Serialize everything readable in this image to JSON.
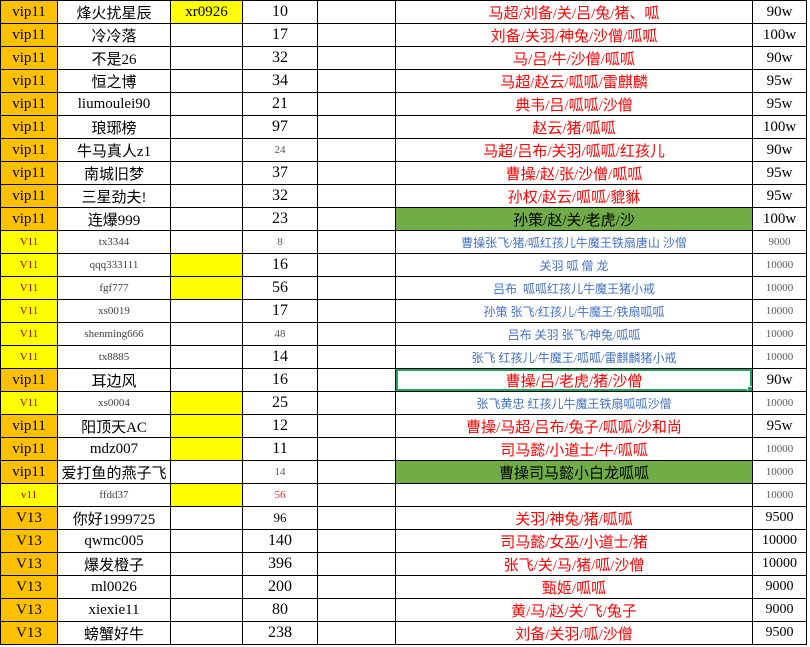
{
  "app": {
    "type": "spreadsheet-grid"
  },
  "colors": {
    "vip_orange_bg": "#FFC000",
    "vip_yellow_bg": "#FFFF00",
    "green_fill": "#70AD47",
    "red_text": "#FF0000",
    "blue_text": "#4472C4",
    "selection_border": "#21A366",
    "grid_border": "#000000"
  },
  "table": {
    "rows": [
      {
        "vip": "vip11",
        "vip_style": "orange",
        "name": "烽火扰星辰",
        "name_style": "normal",
        "code": "xr0926",
        "code_yellow": true,
        "num": "10",
        "num_style": "normal",
        "chars": "马超/刘备/关/吕/兔/猪、呱",
        "chars_style": "red",
        "value": "90w",
        "value_style": "w",
        "selected": false
      },
      {
        "vip": "vip11",
        "vip_style": "orange",
        "name": "冷冷落",
        "name_style": "normal",
        "code": "",
        "code_yellow": false,
        "num": "17",
        "num_style": "normal",
        "chars": "刘备/关羽/神兔/沙僧/呱呱",
        "chars_style": "red",
        "value": "100w",
        "value_style": "w",
        "selected": false
      },
      {
        "vip": "vip11",
        "vip_style": "orange",
        "name": "不是26",
        "name_style": "normal",
        "code": "",
        "code_yellow": false,
        "num": "32",
        "num_style": "normal",
        "chars": "马/吕/牛/沙僧/呱呱",
        "chars_style": "red",
        "value": "90w",
        "value_style": "w",
        "selected": false
      },
      {
        "vip": "vip11",
        "vip_style": "orange",
        "name": "恒之博",
        "name_style": "normal",
        "code": "",
        "code_yellow": false,
        "num": "34",
        "num_style": "normal",
        "chars": "马超/赵云/呱呱/雷麒麟",
        "chars_style": "red",
        "value": "95w",
        "value_style": "w",
        "selected": false
      },
      {
        "vip": "vip11",
        "vip_style": "orange",
        "name": "liumoulei90",
        "name_style": "normal",
        "code": "",
        "code_yellow": false,
        "num": "21",
        "num_style": "normal",
        "chars": "典韦/吕/呱呱/沙僧",
        "chars_style": "red",
        "value": "95w",
        "value_style": "w",
        "selected": false
      },
      {
        "vip": "vip11",
        "vip_style": "orange",
        "name": "琅琊榜",
        "name_style": "normal",
        "code": "",
        "code_yellow": false,
        "num": "97",
        "num_style": "normal",
        "chars": "赵云/猪/呱呱",
        "chars_style": "red",
        "value": "100w",
        "value_style": "w",
        "selected": false
      },
      {
        "vip": "vip11",
        "vip_style": "orange",
        "name": "牛马真人z1",
        "name_style": "normal",
        "code": "",
        "code_yellow": false,
        "num": "24",
        "num_style": "small",
        "chars": "马超/吕布/关羽/呱呱/红孩儿",
        "chars_style": "red",
        "value": "90w",
        "value_style": "w",
        "selected": false
      },
      {
        "vip": "vip11",
        "vip_style": "orange",
        "name": "南城旧梦",
        "name_style": "normal",
        "code": "",
        "code_yellow": false,
        "num": "37",
        "num_style": "normal",
        "chars": "曹操/赵/张/沙僧/呱呱",
        "chars_style": "red",
        "value": "95w",
        "value_style": "w",
        "selected": false
      },
      {
        "vip": "vip11",
        "vip_style": "orange",
        "name": "三星劲夫!",
        "name_style": "normal",
        "code": "",
        "code_yellow": false,
        "num": "32",
        "num_style": "normal",
        "chars": "孙权/赵云/呱呱/貔貅",
        "chars_style": "red",
        "value": "95w",
        "value_style": "w",
        "selected": false
      },
      {
        "vip": "vip11",
        "vip_style": "orange",
        "name": "连爆999",
        "name_style": "normal",
        "code": "",
        "code_yellow": false,
        "num": "23",
        "num_style": "normal",
        "chars": "孙策/赵/关/老虎/沙",
        "chars_style": "green",
        "value": "100w",
        "value_style": "w",
        "selected": false
      },
      {
        "vip": "V11",
        "vip_style": "yellow",
        "name": "tx3344",
        "name_style": "small",
        "code": "",
        "code_yellow": false,
        "num": "8",
        "num_style": "small",
        "chars": "曹操张飞/猪/呱红孩儿牛魔王铁扇唐山 沙僧",
        "chars_style": "blue",
        "value": "9000",
        "value_style": "small",
        "selected": false
      },
      {
        "vip": "V11",
        "vip_style": "yellow",
        "name": "qqq333111",
        "name_style": "small",
        "code": "",
        "code_yellow": true,
        "num": "16",
        "num_style": "normal",
        "chars": "关羽 呱 僧 龙",
        "chars_style": "blue",
        "value": "10000",
        "value_style": "small",
        "selected": false
      },
      {
        "vip": "V11",
        "vip_style": "yellow",
        "name": "fgf777",
        "name_style": "small",
        "code": "",
        "code_yellow": true,
        "num": "56",
        "num_style": "normal",
        "chars": "吕布  呱呱红孩儿牛魔王猪小戒",
        "chars_style": "blue",
        "value": "10000",
        "value_style": "small",
        "selected": false
      },
      {
        "vip": "V11",
        "vip_style": "yellow",
        "name": "xs0019",
        "name_style": "small",
        "code": "",
        "code_yellow": false,
        "num": "17",
        "num_style": "normal",
        "chars": "孙策 张飞/红孩儿/牛魔王/铁扇呱呱",
        "chars_style": "blue",
        "value": "10000",
        "value_style": "small",
        "selected": false
      },
      {
        "vip": "V11",
        "vip_style": "yellow",
        "name": "shenming666",
        "name_style": "small",
        "code": "",
        "code_yellow": false,
        "num": "48",
        "num_style": "small",
        "chars": "吕布 关羽 张飞/神兔/呱呱",
        "chars_style": "blue",
        "value": "10000",
        "value_style": "small",
        "selected": false
      },
      {
        "vip": "V11",
        "vip_style": "yellow",
        "name": "tx8885",
        "name_style": "small",
        "code": "",
        "code_yellow": false,
        "num": "14",
        "num_style": "normal",
        "chars": "张飞 红孩儿/牛魔王/呱呱/雷麒麟猪小戒",
        "chars_style": "blue",
        "value": "10000",
        "value_style": "small",
        "selected": false
      },
      {
        "vip": "vip11",
        "vip_style": "orange",
        "name": "耳边风",
        "name_style": "normal",
        "code": "",
        "code_yellow": false,
        "num": "16",
        "num_style": "normal",
        "chars": "曹操/吕/老虎/猪/沙僧",
        "chars_style": "red",
        "value": "90w",
        "value_style": "w",
        "selected": true
      },
      {
        "vip": "V11",
        "vip_style": "yellow",
        "name": "xs0004",
        "name_style": "small",
        "code": "",
        "code_yellow": true,
        "num": "25",
        "num_style": "normal",
        "chars": "张飞黄忠 红孩儿牛魔王铁扇呱呱沙僧",
        "chars_style": "blue",
        "value": "10000",
        "value_style": "small",
        "selected": false
      },
      {
        "vip": "vip11",
        "vip_style": "orange",
        "name": "阳顶天AC",
        "name_style": "normal",
        "code": "",
        "code_yellow": true,
        "num": "12",
        "num_style": "normal",
        "chars": "曹操/马超/吕布/兔子/呱呱/沙和尚",
        "chars_style": "red",
        "value": "95w",
        "value_style": "w",
        "selected": false
      },
      {
        "vip": "vip11",
        "vip_style": "orange",
        "name": "mdz007",
        "name_style": "normal",
        "code": "",
        "code_yellow": true,
        "num": "11",
        "num_style": "normal",
        "chars": "司马懿/小道士/牛/呱呱",
        "chars_style": "red",
        "value": "10000",
        "value_style": "small",
        "selected": false
      },
      {
        "vip": "vip11",
        "vip_style": "orange",
        "name": "爱打鱼的燕子飞",
        "name_style": "normal",
        "code": "",
        "code_yellow": false,
        "num": "14",
        "num_style": "small",
        "chars": "曹操司马懿小白龙呱呱",
        "chars_style": "green",
        "value": "10000",
        "value_style": "small",
        "selected": false
      },
      {
        "vip": "v11",
        "vip_style": "yellow",
        "name": "ffdd37",
        "name_style": "small",
        "code": "",
        "code_yellow": true,
        "num": "56",
        "num_style": "red",
        "chars": "",
        "chars_style": "none",
        "value": "10000",
        "value_style": "small",
        "selected": false
      },
      {
        "vip": "V13",
        "vip_style": "orange",
        "name": "你好1999725",
        "name_style": "normal",
        "code": "",
        "code_yellow": false,
        "num": "96",
        "num_style": "mid",
        "chars": "关羽/神兔/猪/呱呱",
        "chars_style": "red",
        "value": "9500",
        "value_style": "v13",
        "selected": false
      },
      {
        "vip": "V13",
        "vip_style": "orange",
        "name": "qwmc005",
        "name_style": "normal",
        "code": "",
        "code_yellow": false,
        "num": "140",
        "num_style": "normal",
        "chars": "司马懿/女巫/小道士/猪",
        "chars_style": "red",
        "value": "10000",
        "value_style": "v13",
        "selected": false
      },
      {
        "vip": "V13",
        "vip_style": "orange",
        "name": "爆发橙子",
        "name_style": "normal",
        "code": "",
        "code_yellow": false,
        "num": "396",
        "num_style": "normal",
        "chars": "张飞/关/马/猪/呱/沙僧",
        "chars_style": "red",
        "value": "10000",
        "value_style": "v13",
        "selected": false
      },
      {
        "vip": "V13",
        "vip_style": "orange",
        "name": "ml0026",
        "name_style": "normal",
        "code": "",
        "code_yellow": false,
        "num": "200",
        "num_style": "normal",
        "chars": "甄姬/呱呱",
        "chars_style": "red",
        "value": "9000",
        "value_style": "v13",
        "selected": false
      },
      {
        "vip": "V13",
        "vip_style": "orange",
        "name": "xiexie11",
        "name_style": "normal",
        "code": "",
        "code_yellow": false,
        "num": "80",
        "num_style": "normal",
        "chars": "黄/马/赵/关/飞/兔子",
        "chars_style": "red",
        "value": "9000",
        "value_style": "v13",
        "selected": false
      },
      {
        "vip": "V13",
        "vip_style": "orange",
        "name": "螃蟹好牛",
        "name_style": "normal",
        "code": "",
        "code_yellow": false,
        "num": "238",
        "num_style": "normal",
        "chars": "刘备/关羽/呱/沙僧",
        "chars_style": "red",
        "value": "9500",
        "value_style": "v13",
        "selected": false
      }
    ]
  }
}
